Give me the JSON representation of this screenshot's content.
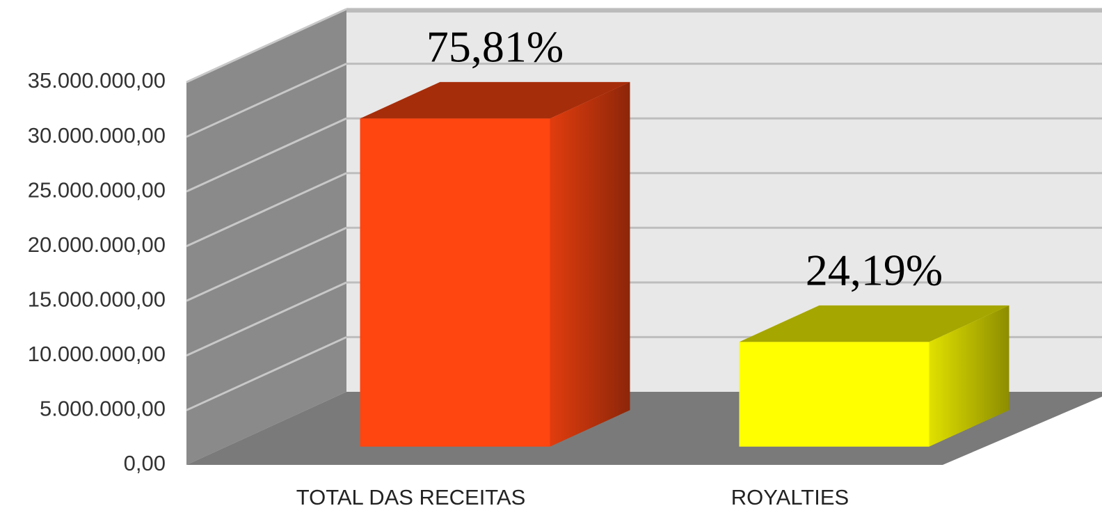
{
  "chart_data": {
    "type": "bar3d",
    "categories": [
      "TOTAL DAS  RECEITAS",
      "ROYALTIES"
    ],
    "values": [
      30000000,
      9570000
    ],
    "annotations": [
      "75,81%",
      "24,19%"
    ],
    "colors": [
      "#ff4510",
      "#ffff00"
    ],
    "ylim": [
      0,
      35000000
    ],
    "yticks": [
      {
        "value": 0,
        "label": "0,00"
      },
      {
        "value": 5000000,
        "label": "5.000.000,00"
      },
      {
        "value": 10000000,
        "label": "10.000.000,00"
      },
      {
        "value": 15000000,
        "label": "15.000.000,00"
      },
      {
        "value": 20000000,
        "label": "20.000.000,00"
      },
      {
        "value": 25000000,
        "label": "25.000.000,00"
      },
      {
        "value": 30000000,
        "label": "30.000.000,00"
      },
      {
        "value": 35000000,
        "label": "35.000.000,00"
      }
    ],
    "grid": true
  }
}
